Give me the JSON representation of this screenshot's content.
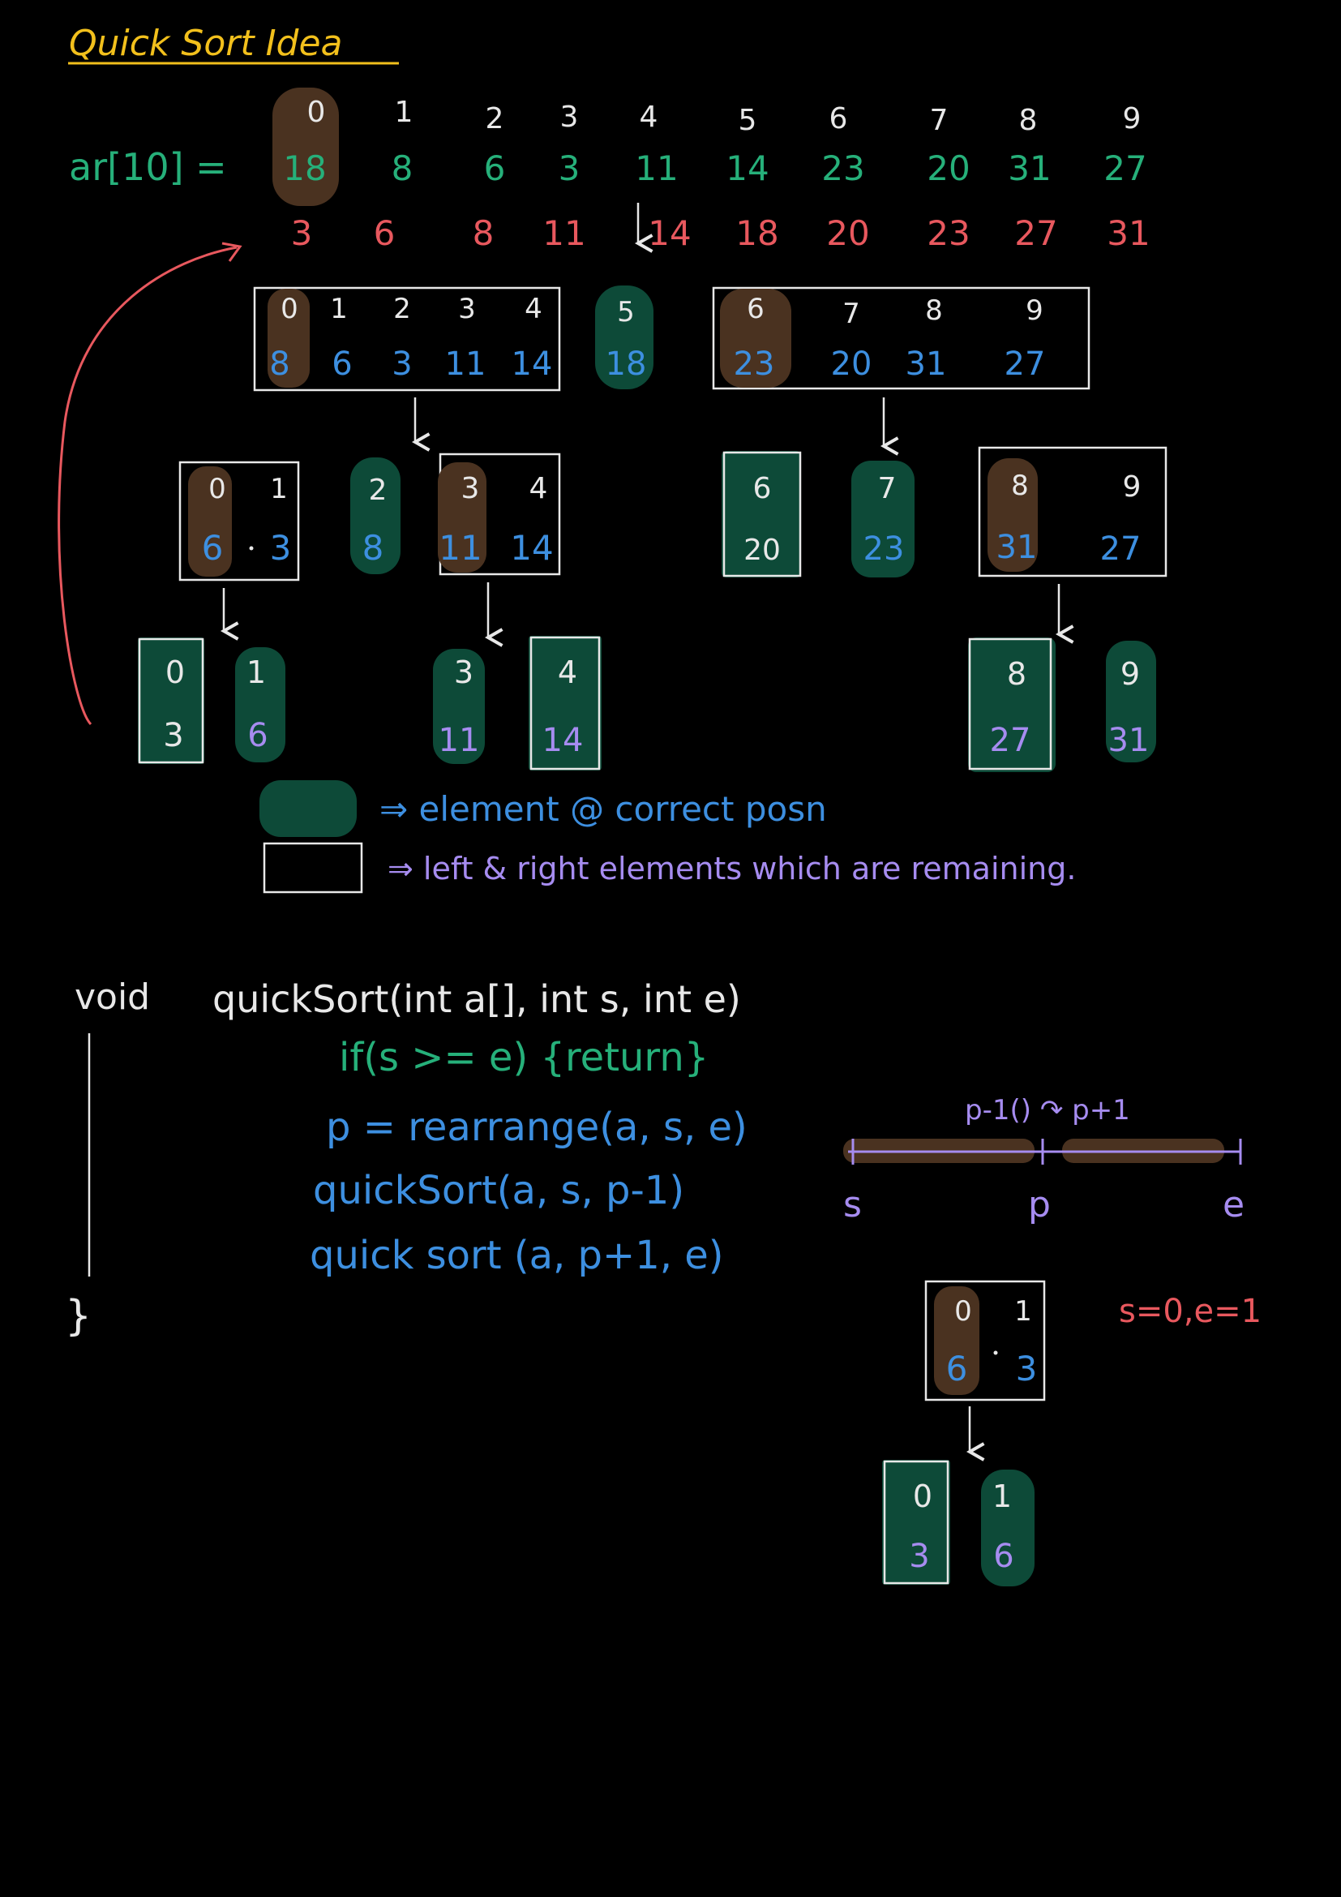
{
  "title": "Quick Sort Idea",
  "array_label": "ar[10] =",
  "indices": [
    "0",
    "1",
    "2",
    "3",
    "4",
    "5",
    "6",
    "7",
    "8",
    "9"
  ],
  "original": [
    "18",
    "8",
    "6",
    "3",
    "11",
    "14",
    "23",
    "20",
    "31",
    "27"
  ],
  "sorted": [
    "3",
    "6",
    "8",
    "11",
    "14",
    "18",
    "20",
    "23",
    "27",
    "31"
  ],
  "level1": {
    "left": {
      "idx": [
        "0",
        "1",
        "2",
        "3",
        "4"
      ],
      "val": [
        "8",
        "6",
        "3",
        "11",
        "14"
      ]
    },
    "pivot": {
      "idx": "5",
      "val": "18"
    },
    "right": {
      "idx": [
        "6",
        "7",
        "8",
        "9"
      ],
      "val": [
        "23",
        "20",
        "31",
        "27"
      ]
    }
  },
  "level2": {
    "a": {
      "idx": [
        "0",
        "1"
      ],
      "val": [
        "6",
        "3"
      ]
    },
    "b": {
      "idx": "2",
      "val": "8"
    },
    "c": {
      "idx": [
        "3",
        "4"
      ],
      "val": [
        "11",
        "14"
      ]
    },
    "d": {
      "idx": "6",
      "val": "20"
    },
    "e": {
      "idx": "7",
      "val": "23"
    },
    "f": {
      "idx": [
        "8",
        "9"
      ],
      "val": [
        "31",
        "27"
      ]
    }
  },
  "level3": {
    "a": {
      "idx": "0",
      "val": "3"
    },
    "b": {
      "idx": "1",
      "val": "6"
    },
    "c": {
      "idx": "3",
      "val": "11"
    },
    "d": {
      "idx": "4",
      "val": "14"
    },
    "e": {
      "idx": "8",
      "val": "27"
    },
    "f": {
      "idx": "9",
      "val": "31"
    }
  },
  "legend": {
    "filled": "⇒ element @ correct posn",
    "outlined": "⇒ left & right elements which are remaining."
  },
  "code": {
    "void": "void",
    "signature": "quickSort(int a[], int s, int e)",
    "if_line": "if(s >= e) {return}",
    "p_line": "p = rearrange(a, s, e)",
    "call1": "quickSort(a, s, p-1)",
    "call2": "quick sort (a, p+1, e)",
    "close": "}"
  },
  "range": {
    "top_label": "p-1() ↷ p+1",
    "s": "s",
    "p": "p",
    "e": "e"
  },
  "example": {
    "condition": "s=0,e=1",
    "box": {
      "idx": [
        "0",
        "1"
      ],
      "val": [
        "6",
        "3"
      ]
    },
    "out": [
      {
        "idx": "0",
        "val": "3"
      },
      {
        "idx": "1",
        "val": "6"
      }
    ]
  },
  "colors": {
    "yellow": "#f2c01c",
    "green": "#26b07a",
    "red": "#e8585e",
    "blue": "#3d8fe0",
    "lavender": "#a68cf0",
    "white": "#e8e8e8",
    "brown": "#4a3220",
    "teal": "#0d4a38",
    "orange": "#f0a020"
  }
}
